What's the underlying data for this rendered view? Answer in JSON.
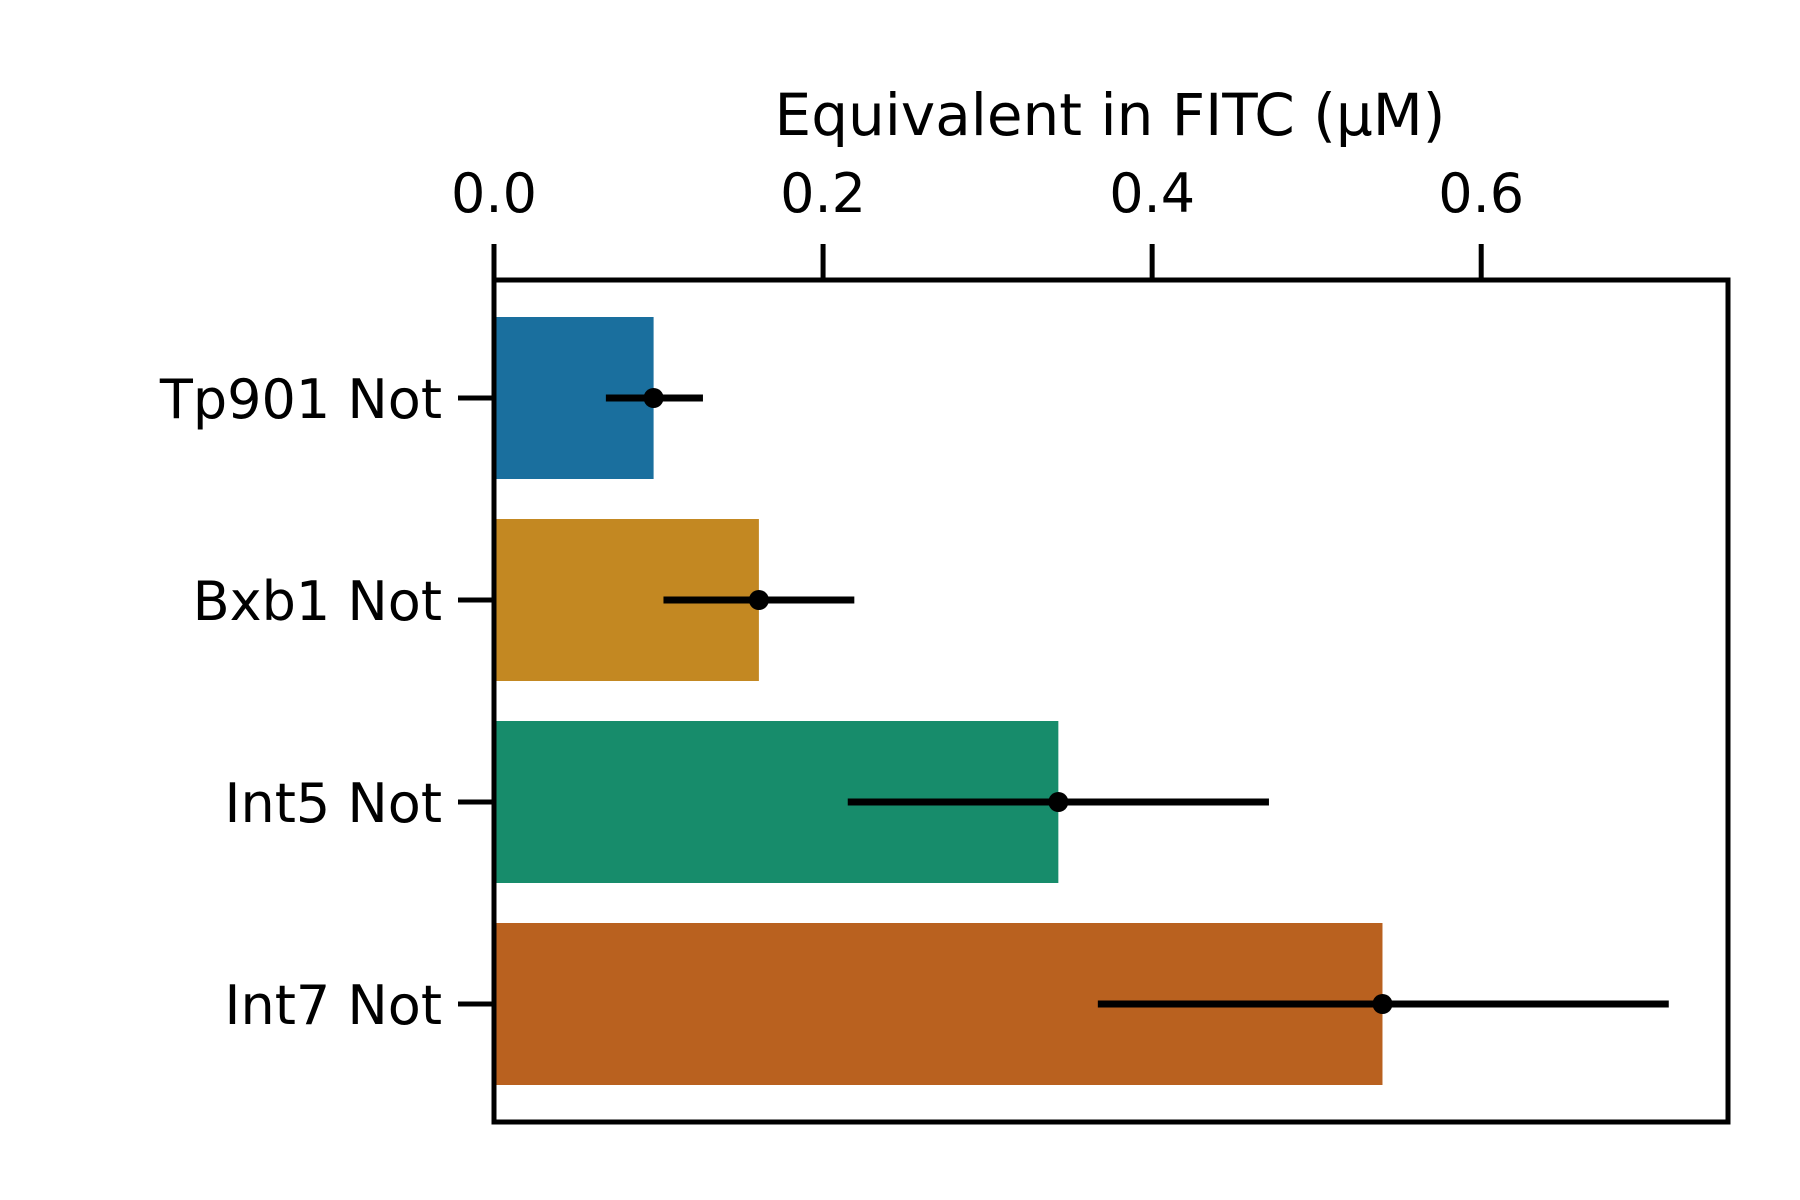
{
  "chart_data": {
    "type": "bar",
    "orientation": "horizontal",
    "title": "",
    "xlabel": "Equivalent in FITC (μM)",
    "ylabel": "",
    "xlim": [
      0,
      0.75
    ],
    "xaxis_position": "top",
    "x_ticks": [
      "0.0",
      "0.2",
      "0.4",
      "0.6"
    ],
    "x_tick_values": [
      0.0,
      0.2,
      0.4,
      0.6
    ],
    "categories": [
      "Tp901 Not",
      "Bxb1 Not",
      "Int5 Not",
      "Int7 Not"
    ],
    "values": [
      0.097,
      0.161,
      0.343,
      0.54
    ],
    "error_low": [
      0.068,
      0.103,
      0.215,
      0.367
    ],
    "error_high": [
      0.127,
      0.219,
      0.471,
      0.714
    ],
    "colors": [
      "#1a6f9e",
      "#c38822",
      "#178c6b",
      "#b9611f"
    ],
    "grid": false,
    "legend": "none"
  }
}
